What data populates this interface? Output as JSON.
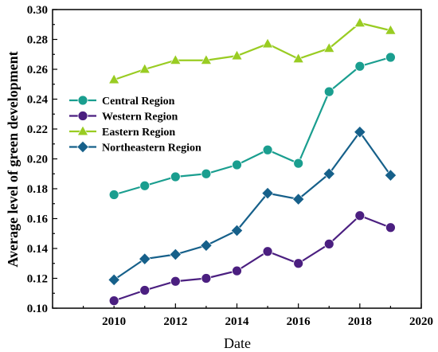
{
  "chart_data": {
    "type": "line",
    "xlabel": "Date",
    "ylabel": "Average level of green development",
    "xlim": [
      2008,
      2020
    ],
    "ylim": [
      0.1,
      0.3
    ],
    "xticks": [
      2010,
      2012,
      2014,
      2016,
      2018,
      2020
    ],
    "yticks": [
      0.1,
      0.12,
      0.14,
      0.16,
      0.18,
      0.2,
      0.22,
      0.24,
      0.26,
      0.28,
      0.3
    ],
    "x": [
      2010,
      2011,
      2012,
      2013,
      2014,
      2015,
      2016,
      2017,
      2018,
      2019
    ],
    "legend_position": "center-left",
    "series": [
      {
        "name": "Central Region",
        "color": "#1a9e8f",
        "marker": "circle",
        "values": [
          0.176,
          0.182,
          0.188,
          0.19,
          0.196,
          0.206,
          0.197,
          0.245,
          0.262,
          0.268
        ]
      },
      {
        "name": "Western Region",
        "color": "#4b1f80",
        "marker": "circle",
        "values": [
          0.105,
          0.112,
          0.118,
          0.12,
          0.125,
          0.138,
          0.13,
          0.143,
          0.162,
          0.154
        ]
      },
      {
        "name": "Eastern Region",
        "color": "#99cc22",
        "marker": "triangle",
        "values": [
          0.253,
          0.26,
          0.266,
          0.266,
          0.269,
          0.277,
          0.267,
          0.274,
          0.291,
          0.286
        ]
      },
      {
        "name": "Northeastern Region",
        "color": "#16608a",
        "marker": "diamond",
        "values": [
          0.119,
          0.133,
          0.136,
          0.142,
          0.152,
          0.177,
          0.173,
          0.19,
          0.218,
          0.189
        ]
      }
    ]
  }
}
